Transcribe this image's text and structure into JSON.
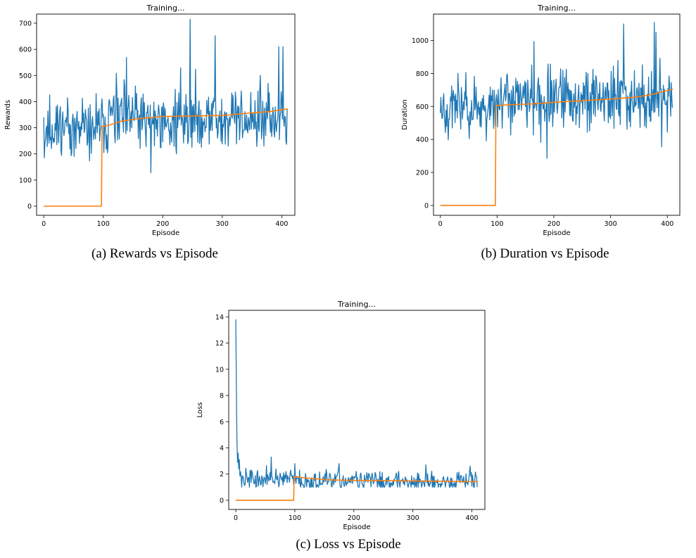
{
  "chart_data": [
    {
      "type": "line",
      "title": "Training...",
      "xlabel": "Episode",
      "ylabel": "Rewards",
      "caption": "(a) Rewards vs Episode",
      "xlim": [
        -12,
        422
      ],
      "ylim": [
        -35,
        735
      ],
      "xticks": [
        0,
        100,
        200,
        300,
        400
      ],
      "yticks": [
        0,
        100,
        200,
        300,
        400,
        500,
        600,
        700
      ],
      "series": [
        {
          "color": "#1f77b4",
          "generator": {
            "n": 410,
            "seed": 11,
            "base_early": 290,
            "base_late": 330,
            "spread": 125,
            "min": 125,
            "max": 715,
            "spikes": [
              [
                0,
                340
              ],
              [
                1,
                185
              ],
              [
                246,
                715
              ],
              [
                288,
                652
              ],
              [
                395,
                610
              ],
              [
                402,
                610
              ],
              [
                180,
                128
              ]
            ]
          }
        },
        {
          "color": "#ff7f0e",
          "points": [
            [
              0,
              0
            ],
            [
              97,
              0
            ],
            [
              98,
              305
            ],
            [
              110,
              310
            ],
            [
              130,
              325
            ],
            [
              160,
              335
            ],
            [
              200,
              343
            ],
            [
              250,
              345
            ],
            [
              300,
              347
            ],
            [
              350,
              357
            ],
            [
              380,
              362
            ],
            [
              410,
              372
            ]
          ]
        }
      ]
    },
    {
      "type": "line",
      "title": "Training...",
      "xlabel": "Episode",
      "ylabel": "Duration",
      "caption": "(b) Duration vs Episode",
      "xlim": [
        -12,
        422
      ],
      "ylim": [
        -60,
        1160
      ],
      "xticks": [
        0,
        100,
        200,
        300,
        400
      ],
      "yticks": [
        0,
        200,
        400,
        600,
        800,
        1000
      ],
      "series": [
        {
          "color": "#1f77b4",
          "generator": {
            "n": 410,
            "seed": 23,
            "base_early": 600,
            "base_late": 640,
            "spread": 190,
            "min": 280,
            "max": 1110,
            "spikes": [
              [
                0,
                560
              ],
              [
                323,
                1100
              ],
              [
                377,
                1110
              ],
              [
                380,
                1050
              ],
              [
                188,
                285
              ],
              [
                390,
                355
              ]
            ]
          }
        },
        {
          "color": "#ff7f0e",
          "points": [
            [
              0,
              0
            ],
            [
              97,
              0
            ],
            [
              98,
              605
            ],
            [
              120,
              610
            ],
            [
              160,
              615
            ],
            [
              200,
              625
            ],
            [
              250,
              635
            ],
            [
              300,
              645
            ],
            [
              340,
              655
            ],
            [
              370,
              670
            ],
            [
              410,
              705
            ]
          ]
        }
      ]
    },
    {
      "type": "line",
      "title": "Training...",
      "xlabel": "Episode",
      "ylabel": "Loss",
      "caption": "(c) Loss vs Episode",
      "xlim": [
        -12,
        422
      ],
      "ylim": [
        -0.7,
        14.5
      ],
      "xticks": [
        0,
        100,
        200,
        300,
        400
      ],
      "yticks": [
        0,
        2,
        4,
        6,
        8,
        10,
        12,
        14
      ],
      "series": [
        {
          "color": "#1f77b4",
          "generator": {
            "n": 410,
            "seed": 37,
            "base_early": 1.6,
            "base_late": 1.45,
            "spread": 0.75,
            "min": 1.0,
            "max": 13.8,
            "spikes": [
              [
                0,
                13.8
              ],
              [
                1,
                8.5
              ],
              [
                2,
                4.3
              ],
              [
                3,
                2.9
              ],
              [
                4,
                3.6
              ],
              [
                5,
                2.4
              ],
              [
                6,
                3.1
              ],
              [
                60,
                3.3
              ],
              [
                100,
                2.8
              ],
              [
                175,
                2.8
              ],
              [
                322,
                2.7
              ],
              [
                397,
                2.6
              ]
            ]
          }
        },
        {
          "color": "#ff7f0e",
          "points": [
            [
              0,
              0
            ],
            [
              98,
              0
            ],
            [
              99,
              1.8
            ],
            [
              120,
              1.7
            ],
            [
              160,
              1.55
            ],
            [
              200,
              1.52
            ],
            [
              250,
              1.5
            ],
            [
              300,
              1.48
            ],
            [
              350,
              1.45
            ],
            [
              410,
              1.42
            ]
          ]
        }
      ]
    }
  ]
}
